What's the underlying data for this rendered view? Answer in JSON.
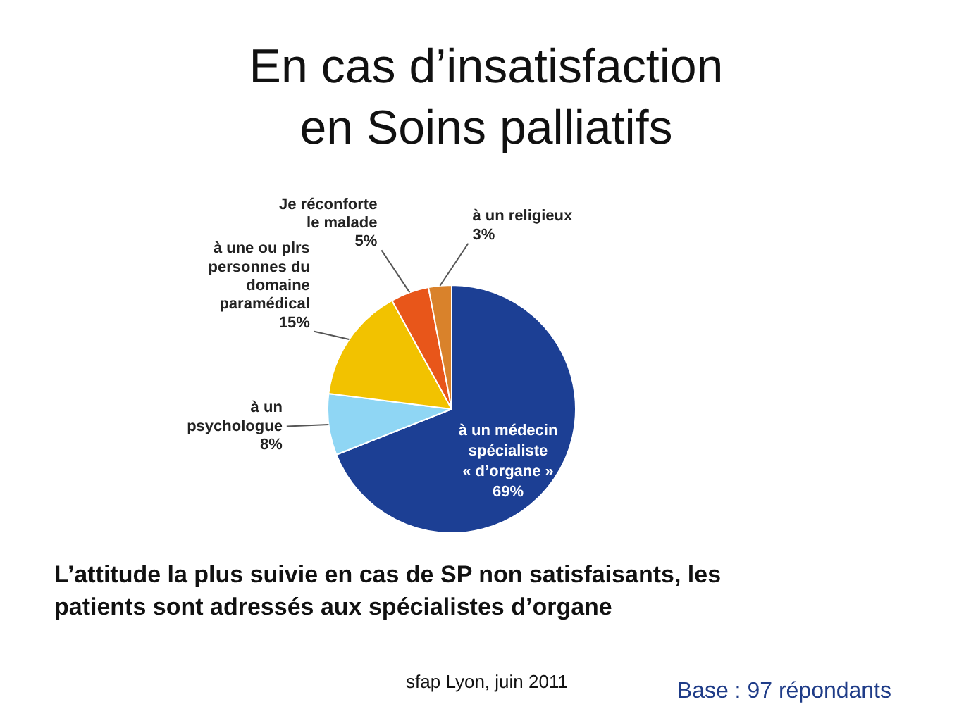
{
  "chart_data": {
    "type": "pie",
    "title": "En cas d’insatisfaction\nen Soins palliatifs",
    "categories": [
      "à un médecin\nspécialiste\n« d’organe »",
      "à un\npsychologue",
      "à une ou plrs\npersonnes du\ndomaine\nparamédical",
      "Je réconforte\nle malade",
      "à un religieux"
    ],
    "values": [
      69,
      8,
      15,
      5,
      3
    ],
    "value_labels": [
      "69%",
      "8%",
      "15%",
      "5%",
      "3%"
    ],
    "colors": [
      "#1c3f94",
      "#8fd6f4",
      "#f2c200",
      "#e8561a",
      "#d9822b"
    ],
    "annotations": [
      "L’attitude la plus  suivie en cas de SP non satisfaisants, les\npatients sont adressés  aux spécialistes d’organe",
      "sfap Lyon, juin 2011",
      "Base : 97 répondants"
    ]
  }
}
